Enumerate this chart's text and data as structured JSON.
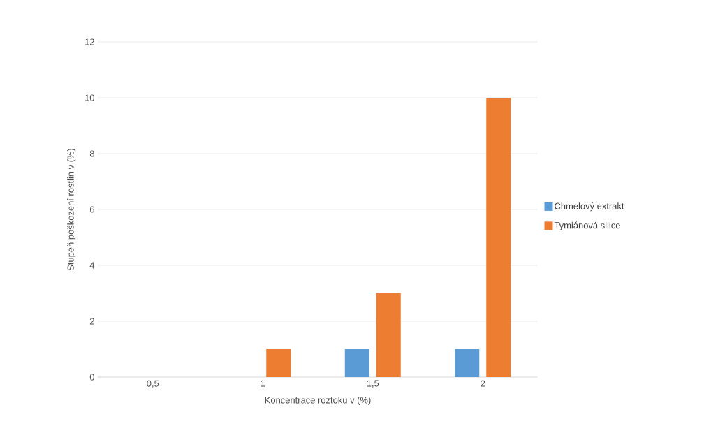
{
  "chart_data": {
    "type": "bar",
    "xlabel": "Koncentrace roztoku v (%)",
    "ylabel": "Stupeň poškození rostlin v (%)",
    "categories": [
      "0,5",
      "1",
      "1,5",
      "2"
    ],
    "series": [
      {
        "name": "Chmelový extrakt",
        "color": "#5b9bd5",
        "values": [
          0,
          0,
          1,
          1
        ]
      },
      {
        "name": "Tymiánová silice",
        "color": "#ed7d31",
        "values": [
          0,
          1,
          3,
          10
        ]
      }
    ],
    "ylim": [
      0,
      12
    ],
    "yticks": [
      0,
      2,
      4,
      6,
      8,
      10,
      12
    ],
    "grid": "y",
    "legend": "right"
  }
}
